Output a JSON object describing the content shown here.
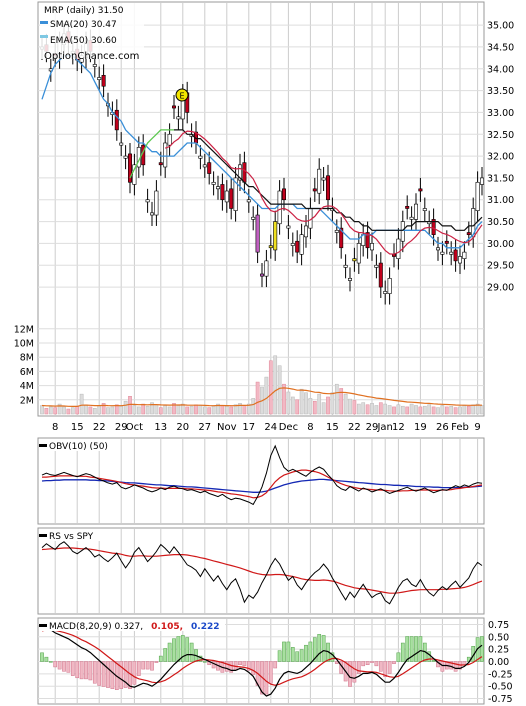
{
  "chart_data": {
    "type": "candlestick",
    "title": "MRP (daily) 31.50",
    "watermark": "OptionChance.com",
    "legend": [
      {
        "label": "SMA(20) 30.47",
        "color": "#3a8fd8"
      },
      {
        "label": "EMA(50) 30.60",
        "color": "#7ec8e3"
      }
    ],
    "price_axis": {
      "ticks": [
        "35.00",
        "34.50",
        "34.00",
        "33.50",
        "33.00",
        "32.50",
        "32.00",
        "31.50",
        "31.00",
        "30.50",
        "30.00",
        "29.50",
        "29.00"
      ],
      "ylim": [
        28.2,
        35.3
      ]
    },
    "volume_axis": {
      "ticks": [
        "12M",
        "10M",
        "8M",
        "6M",
        "4M",
        "2M"
      ]
    },
    "x_labels": [
      "8",
      "15",
      "22",
      "29",
      "Oct",
      "13",
      "20",
      "27",
      "Nov",
      "17",
      "24",
      "Dec",
      "8",
      "15",
      "22",
      "29",
      "Jan",
      "12",
      "19",
      "26",
      "Feb",
      "9"
    ],
    "earnings_marker": "E",
    "close": [
      34.5,
      34.4,
      34.0,
      34.3,
      34.6,
      34.8,
      34.6,
      34.4,
      34.2,
      34.3,
      34.6,
      34.4,
      34.1,
      33.8,
      33.6,
      33.2,
      33.0,
      32.6,
      32.3,
      32.0,
      31.4,
      31.8,
      32.2,
      31.8,
      31.0,
      30.7,
      31.2,
      31.8,
      32.3,
      32.5,
      33.1,
      32.9,
      33.4,
      33.0,
      32.5,
      32.3,
      32.0,
      31.8,
      31.6,
      31.4,
      31.3,
      31.0,
      31.2,
      30.8,
      31.5,
      31.8,
      31.4,
      31.0,
      30.6,
      29.8,
      29.3,
      29.6,
      29.9,
      30.5,
      31.2,
      31.0,
      30.4,
      30.0,
      29.8,
      30.2,
      30.4,
      30.8,
      31.2,
      31.7,
      31.5,
      31.0,
      30.8,
      30.3,
      29.9,
      29.5,
      29.2,
      29.6,
      30.0,
      30.2,
      29.9,
      30.0,
      29.5,
      29.0,
      28.9,
      29.2,
      29.7,
      30.1,
      30.5,
      30.8,
      30.6,
      30.9,
      31.2,
      30.8,
      30.5,
      30.2,
      29.9,
      29.8,
      30.0,
      29.8,
      29.6,
      29.7,
      29.8,
      30.2,
      30.8,
      31.4,
      31.5
    ],
    "bear_days": [
      1,
      3,
      6,
      8,
      11,
      14,
      17,
      20,
      23,
      27,
      30,
      33,
      35,
      38,
      41,
      43,
      46,
      49,
      52,
      55,
      58,
      62,
      65,
      68,
      71,
      74,
      77,
      80,
      83,
      86,
      89,
      92,
      94,
      97
    ],
    "sma20": [
      33.3,
      33.6,
      33.9,
      34.1,
      34.2,
      34.3,
      34.3,
      34.3,
      34.2,
      34.1,
      34.0,
      33.9,
      33.7,
      33.5,
      33.3,
      33.2,
      33.0,
      32.9,
      32.8,
      32.6,
      32.5,
      32.4,
      32.3,
      32.3,
      32.2,
      32.1,
      32.1,
      32.0,
      32.0,
      32.0,
      32.0,
      32.1,
      32.2,
      32.3,
      32.3,
      32.3,
      32.2,
      32.1,
      32.0,
      31.9,
      31.8,
      31.7,
      31.6,
      31.5,
      31.4,
      31.3,
      31.2,
      31.1,
      31.0,
      30.9,
      30.8,
      30.8,
      30.8,
      30.8,
      30.9,
      30.9,
      30.9,
      30.9,
      30.8,
      30.8,
      30.8,
      30.8,
      30.8,
      30.8,
      30.7,
      30.6,
      30.5,
      30.4,
      30.3,
      30.2,
      30.1,
      30.1,
      30.1,
      30.2,
      30.2,
      30.2,
      30.3,
      30.3,
      30.3,
      30.3,
      30.3,
      30.3,
      30.3,
      30.3,
      30.3,
      30.3,
      30.3,
      30.3,
      30.2,
      30.1,
      30.0,
      30.0,
      29.9,
      29.9,
      29.9,
      29.9,
      30.0,
      30.1,
      30.2,
      30.4,
      30.5
    ],
    "ema50": [
      null,
      null,
      null,
      null,
      null,
      null,
      null,
      null,
      null,
      null,
      null,
      null,
      null,
      null,
      null,
      null,
      null,
      null,
      null,
      null,
      31.5,
      31.7,
      31.9,
      32.1,
      32.3,
      32.4,
      32.5,
      32.6,
      32.6,
      32.6,
      32.6,
      32.6,
      32.6,
      32.5,
      32.5,
      32.4,
      32.4,
      32.3,
      32.2,
      32.1,
      32.0,
      31.9,
      31.8,
      31.7,
      31.6,
      31.5,
      31.4,
      31.3,
      31.3,
      31.2,
      31.1,
      31.0,
      30.9,
      30.9,
      30.9,
      30.9,
      30.9,
      30.9,
      30.9,
      30.9,
      30.8,
      30.8,
      30.8,
      30.8,
      30.8,
      30.8,
      30.8,
      30.7,
      30.7,
      30.6,
      30.6,
      30.5,
      30.5,
      30.4,
      30.4,
      30.3,
      30.3,
      30.3,
      30.3,
      30.3,
      30.3,
      30.3,
      30.3,
      30.4,
      30.4,
      30.5,
      30.5,
      30.5,
      30.5,
      30.5,
      30.5,
      30.4,
      30.4,
      30.4,
      30.3,
      30.3,
      30.3,
      30.4,
      30.4,
      30.5,
      30.6
    ],
    "volume": [
      1.2,
      0.8,
      1.0,
      0.9,
      1.4,
      1.0,
      0.7,
      0.9,
      1.1,
      2.8,
      1.3,
      1.0,
      0.8,
      1.2,
      1.5,
      0.9,
      1.0,
      1.3,
      1.1,
      1.8,
      2.5,
      1.2,
      1.0,
      1.4,
      1.1,
      1.6,
      1.3,
      0.9,
      1.2,
      1.0,
      1.5,
      1.2,
      1.4,
      1.0,
      1.1,
      1.3,
      1.2,
      1.0,
      0.9,
      1.1,
      1.4,
      1.2,
      1.1,
      1.0,
      1.3,
      1.5,
      1.2,
      1.4,
      2.2,
      4.5,
      3.8,
      5.2,
      7.5,
      8.2,
      6.8,
      4.2,
      3.1,
      2.4,
      2.0,
      3.5,
      3.0,
      2.2,
      1.8,
      2.8,
      1.6,
      2.4,
      3.0,
      4.2,
      3.6,
      2.8,
      2.1,
      1.9,
      1.4,
      1.6,
      1.3,
      1.5,
      1.2,
      1.6,
      1.4,
      1.2,
      1.0,
      1.3,
      1.1,
      1.0,
      1.4,
      1.2,
      1.0,
      1.1,
      1.3,
      1.0,
      0.9,
      1.2,
      1.0,
      1.1,
      0.9,
      1.0,
      1.2,
      1.1,
      1.3,
      1.4,
      1.2
    ],
    "volume_avg_label": "",
    "obv": {
      "label": "OBV(10) (50)",
      "ylim": [
        -10,
        10
      ],
      "values": [
        1.5,
        2.0,
        1.6,
        1.4,
        1.8,
        2.2,
        1.8,
        1.4,
        1.1,
        1.5,
        1.9,
        1.6,
        1.0,
        0.4,
        0.0,
        -0.5,
        -0.8,
        -0.4,
        -1.6,
        -2.0,
        -1.6,
        -1.0,
        -1.4,
        -1.8,
        -2.4,
        -2.8,
        -2.4,
        -1.8,
        -2.2,
        -1.6,
        -1.3,
        -1.8,
        -2.0,
        -2.4,
        -2.2,
        -2.6,
        -3.0,
        -2.6,
        -3.2,
        -3.6,
        -4.0,
        -3.4,
        -4.2,
        -4.8,
        -4.4,
        -4.6,
        -5.0,
        -5.4,
        -6.0,
        -4.0,
        -1.5,
        2.0,
        6.5,
        9.0,
        6.0,
        3.5,
        2.5,
        3.0,
        2.4,
        1.8,
        1.2,
        2.2,
        3.0,
        3.6,
        3.0,
        1.6,
        0.4,
        -1.2,
        -2.0,
        -2.4,
        -1.4,
        -2.0,
        -2.6,
        -1.8,
        -2.2,
        -2.8,
        -2.4,
        -2.0,
        -2.6,
        -3.2,
        -2.8,
        -2.4,
        -2.0,
        -1.6,
        -2.2,
        -2.6,
        -2.2,
        -1.8,
        -2.4,
        -3.0,
        -2.6,
        -2.2,
        -2.4,
        -1.8,
        -1.2,
        -1.6,
        -1.0,
        -1.4,
        -0.8,
        -0.4,
        -0.6
      ],
      "signal": [
        1.0,
        1.0,
        1.1,
        1.2,
        1.3,
        1.3,
        1.3,
        1.3,
        1.2,
        1.2,
        1.2,
        1.0,
        0.9,
        0.7,
        0.5,
        0.3,
        0.1,
        -0.1,
        -0.4,
        -0.7,
        -0.9,
        -1.0,
        -1.2,
        -1.3,
        -1.5,
        -1.7,
        -1.8,
        -1.8,
        -1.9,
        -1.9,
        -1.9,
        -1.9,
        -1.9,
        -2.0,
        -2.0,
        -2.1,
        -2.2,
        -2.3,
        -2.4,
        -2.6,
        -2.8,
        -2.9,
        -3.1,
        -3.3,
        -3.4,
        -3.6,
        -3.8,
        -4.0,
        -4.3,
        -4.2,
        -3.8,
        -3.0,
        -1.6,
        -0.2,
        0.8,
        1.5,
        1.9,
        2.3,
        2.6,
        2.8,
        2.8,
        2.6,
        2.4,
        2.1,
        1.6,
        1.0,
        0.4,
        -0.2,
        -0.7,
        -1.1,
        -1.4,
        -1.7,
        -1.9,
        -2.0,
        -2.1,
        -2.2,
        -2.3,
        -2.3,
        -2.4,
        -2.5,
        -2.6,
        -2.6,
        -2.5,
        -2.5,
        -2.4,
        -2.4,
        -2.3,
        -2.3,
        -2.3,
        -2.4,
        -2.4,
        -2.3,
        -2.3,
        -2.2,
        -2.0,
        -1.9,
        -1.7,
        -1.6,
        -1.4,
        -1.2,
        -1.0
      ],
      "long": [
        0.0,
        0.1,
        0.1,
        0.2,
        0.2,
        0.3,
        0.3,
        0.3,
        0.3,
        0.3,
        0.3,
        0.2,
        0.2,
        0.1,
        0.1,
        0.0,
        -0.1,
        -0.2,
        -0.3,
        -0.4,
        -0.5,
        -0.5,
        -0.6,
        -0.7,
        -0.8,
        -0.9,
        -1.0,
        -1.0,
        -1.1,
        -1.2,
        -1.2,
        -1.3,
        -1.4,
        -1.5,
        -1.5,
        -1.6,
        -1.7,
        -1.8,
        -1.9,
        -2.0,
        -2.1,
        -2.2,
        -2.3,
        -2.4,
        -2.5,
        -2.6,
        -2.7,
        -2.8,
        -2.9,
        -2.9,
        -2.8,
        -2.6,
        -2.2,
        -1.8,
        -1.4,
        -1.0,
        -0.7,
        -0.4,
        -0.2,
        0.0,
        0.1,
        0.2,
        0.3,
        0.4,
        0.4,
        0.3,
        0.2,
        0.1,
        0.0,
        -0.1,
        -0.2,
        -0.3,
        -0.4,
        -0.5,
        -0.6,
        -0.7,
        -0.8,
        -0.9,
        -0.9,
        -1.0,
        -1.1,
        -1.1,
        -1.2,
        -1.2,
        -1.3,
        -1.4,
        -1.4,
        -1.5,
        -1.5,
        -1.6,
        -1.6,
        -1.7,
        -1.7,
        -1.7,
        -1.7,
        -1.7,
        -1.6,
        -1.6,
        -1.5,
        -1.4,
        -1.3
      ]
    },
    "rs": {
      "label": "RS vs SPY",
      "ylim": [
        -10,
        10
      ],
      "values": [
        6.0,
        7.0,
        6.2,
        5.5,
        6.8,
        7.5,
        6.4,
        5.0,
        4.4,
        5.2,
        6.0,
        5.0,
        3.6,
        4.2,
        3.2,
        2.4,
        3.4,
        4.6,
        2.6,
        0.8,
        2.4,
        4.8,
        6.0,
        4.2,
        2.4,
        3.6,
        5.0,
        6.8,
        5.8,
        4.6,
        6.2,
        4.8,
        3.2,
        1.6,
        1.0,
        0.2,
        -1.4,
        0.6,
        -1.0,
        -2.6,
        -1.2,
        -3.2,
        -4.8,
        -3.0,
        -2.0,
        -4.6,
        -8.0,
        -6.2,
        -7.0,
        -5.4,
        -3.0,
        -1.0,
        1.4,
        3.2,
        1.8,
        -0.4,
        -2.4,
        -1.4,
        -3.6,
        -4.8,
        -3.0,
        -1.6,
        -0.4,
        0.4,
        1.8,
        0.4,
        -1.8,
        -3.6,
        -5.6,
        -7.4,
        -5.4,
        -6.8,
        -5.0,
        -3.4,
        -5.2,
        -6.8,
        -6.0,
        -5.6,
        -7.6,
        -8.4,
        -6.4,
        -4.2,
        -2.6,
        -2.0,
        -3.4,
        -4.0,
        -2.2,
        -4.2,
        -5.6,
        -6.4,
        -5.0,
        -4.0,
        -4.8,
        -3.6,
        -2.6,
        -4.2,
        -3.0,
        -1.8,
        0.6,
        2.2,
        1.4
      ],
      "signal": [
        5.5,
        5.6,
        5.7,
        5.7,
        5.8,
        5.9,
        5.9,
        5.9,
        5.8,
        5.7,
        5.7,
        5.6,
        5.4,
        5.2,
        5.0,
        4.8,
        4.6,
        4.5,
        4.3,
        4.0,
        3.8,
        3.8,
        3.9,
        3.9,
        3.8,
        3.8,
        3.8,
        3.9,
        4.0,
        4.1,
        4.2,
        4.2,
        4.2,
        4.1,
        3.9,
        3.7,
        3.4,
        3.2,
        2.9,
        2.6,
        2.3,
        2.0,
        1.7,
        1.4,
        1.1,
        0.8,
        0.4,
        0.0,
        -0.4,
        -0.7,
        -0.9,
        -1.0,
        -1.0,
        -0.9,
        -0.9,
        -1.0,
        -1.2,
        -1.4,
        -1.7,
        -2.0,
        -2.2,
        -2.3,
        -2.4,
        -2.4,
        -2.3,
        -2.4,
        -2.6,
        -2.9,
        -3.3,
        -3.7,
        -4.0,
        -4.3,
        -4.5,
        -4.6,
        -4.7,
        -4.9,
        -5.1,
        -5.3,
        -5.5,
        -5.7,
        -5.7,
        -5.6,
        -5.4,
        -5.2,
        -5.0,
        -4.9,
        -4.8,
        -4.8,
        -4.8,
        -4.8,
        -4.8,
        -4.7,
        -4.7,
        -4.6,
        -4.5,
        -4.4,
        -4.2,
        -3.9,
        -3.5,
        -3.0,
        -2.6
      ]
    },
    "macd": {
      "label": "MACD(8,20,9) 0.327,",
      "label_signal": "0.105,",
      "label_hist": "0.222",
      "ticks": [
        "0.75",
        "0.50",
        "0.25",
        "0.00",
        "-0.25",
        "-0.50",
        "-0.75"
      ],
      "ylim": [
        -0.82,
        0.82
      ],
      "macd": [
        0.7,
        0.68,
        0.64,
        0.58,
        0.54,
        0.5,
        0.46,
        0.4,
        0.34,
        0.28,
        0.24,
        0.18,
        0.1,
        0.02,
        -0.06,
        -0.14,
        -0.22,
        -0.3,
        -0.36,
        -0.42,
        -0.5,
        -0.52,
        -0.48,
        -0.44,
        -0.46,
        -0.5,
        -0.44,
        -0.36,
        -0.26,
        -0.16,
        -0.06,
        0.02,
        0.1,
        0.14,
        0.14,
        0.12,
        0.08,
        0.04,
        0.0,
        -0.04,
        -0.08,
        -0.12,
        -0.14,
        -0.18,
        -0.18,
        -0.14,
        -0.16,
        -0.22,
        -0.3,
        -0.46,
        -0.62,
        -0.7,
        -0.66,
        -0.54,
        -0.36,
        -0.24,
        -0.2,
        -0.22,
        -0.24,
        -0.2,
        -0.12,
        -0.04,
        0.06,
        0.16,
        0.22,
        0.2,
        0.14,
        0.04,
        -0.08,
        -0.2,
        -0.32,
        -0.34,
        -0.3,
        -0.24,
        -0.24,
        -0.22,
        -0.26,
        -0.34,
        -0.42,
        -0.42,
        -0.34,
        -0.22,
        -0.08,
        0.04,
        0.1,
        0.16,
        0.22,
        0.2,
        0.14,
        0.06,
        -0.02,
        -0.08,
        -0.08,
        -0.1,
        -0.14,
        -0.14,
        -0.1,
        -0.02,
        0.12,
        0.26,
        0.33
      ],
      "signal": [
        0.62,
        0.64,
        0.64,
        0.63,
        0.61,
        0.59,
        0.56,
        0.53,
        0.49,
        0.44,
        0.4,
        0.35,
        0.3,
        0.24,
        0.17,
        0.1,
        0.03,
        -0.04,
        -0.11,
        -0.18,
        -0.25,
        -0.31,
        -0.35,
        -0.37,
        -0.39,
        -0.42,
        -0.43,
        -0.41,
        -0.38,
        -0.33,
        -0.27,
        -0.21,
        -0.14,
        -0.08,
        -0.03,
        0.01,
        0.03,
        0.04,
        0.03,
        0.02,
        0.0,
        -0.02,
        -0.05,
        -0.08,
        -0.1,
        -0.11,
        -0.12,
        -0.14,
        -0.18,
        -0.24,
        -0.32,
        -0.4,
        -0.46,
        -0.48,
        -0.46,
        -0.42,
        -0.38,
        -0.35,
        -0.33,
        -0.31,
        -0.27,
        -0.22,
        -0.16,
        -0.09,
        -0.02,
        0.03,
        0.06,
        0.06,
        0.03,
        -0.02,
        -0.09,
        -0.15,
        -0.19,
        -0.2,
        -0.21,
        -0.21,
        -0.22,
        -0.25,
        -0.28,
        -0.31,
        -0.32,
        -0.3,
        -0.25,
        -0.19,
        -0.13,
        -0.07,
        -0.01,
        0.03,
        0.05,
        0.05,
        0.03,
        0.01,
        -0.01,
        -0.03,
        -0.05,
        -0.07,
        -0.07,
        -0.06,
        -0.02,
        0.04,
        0.1
      ]
    }
  }
}
